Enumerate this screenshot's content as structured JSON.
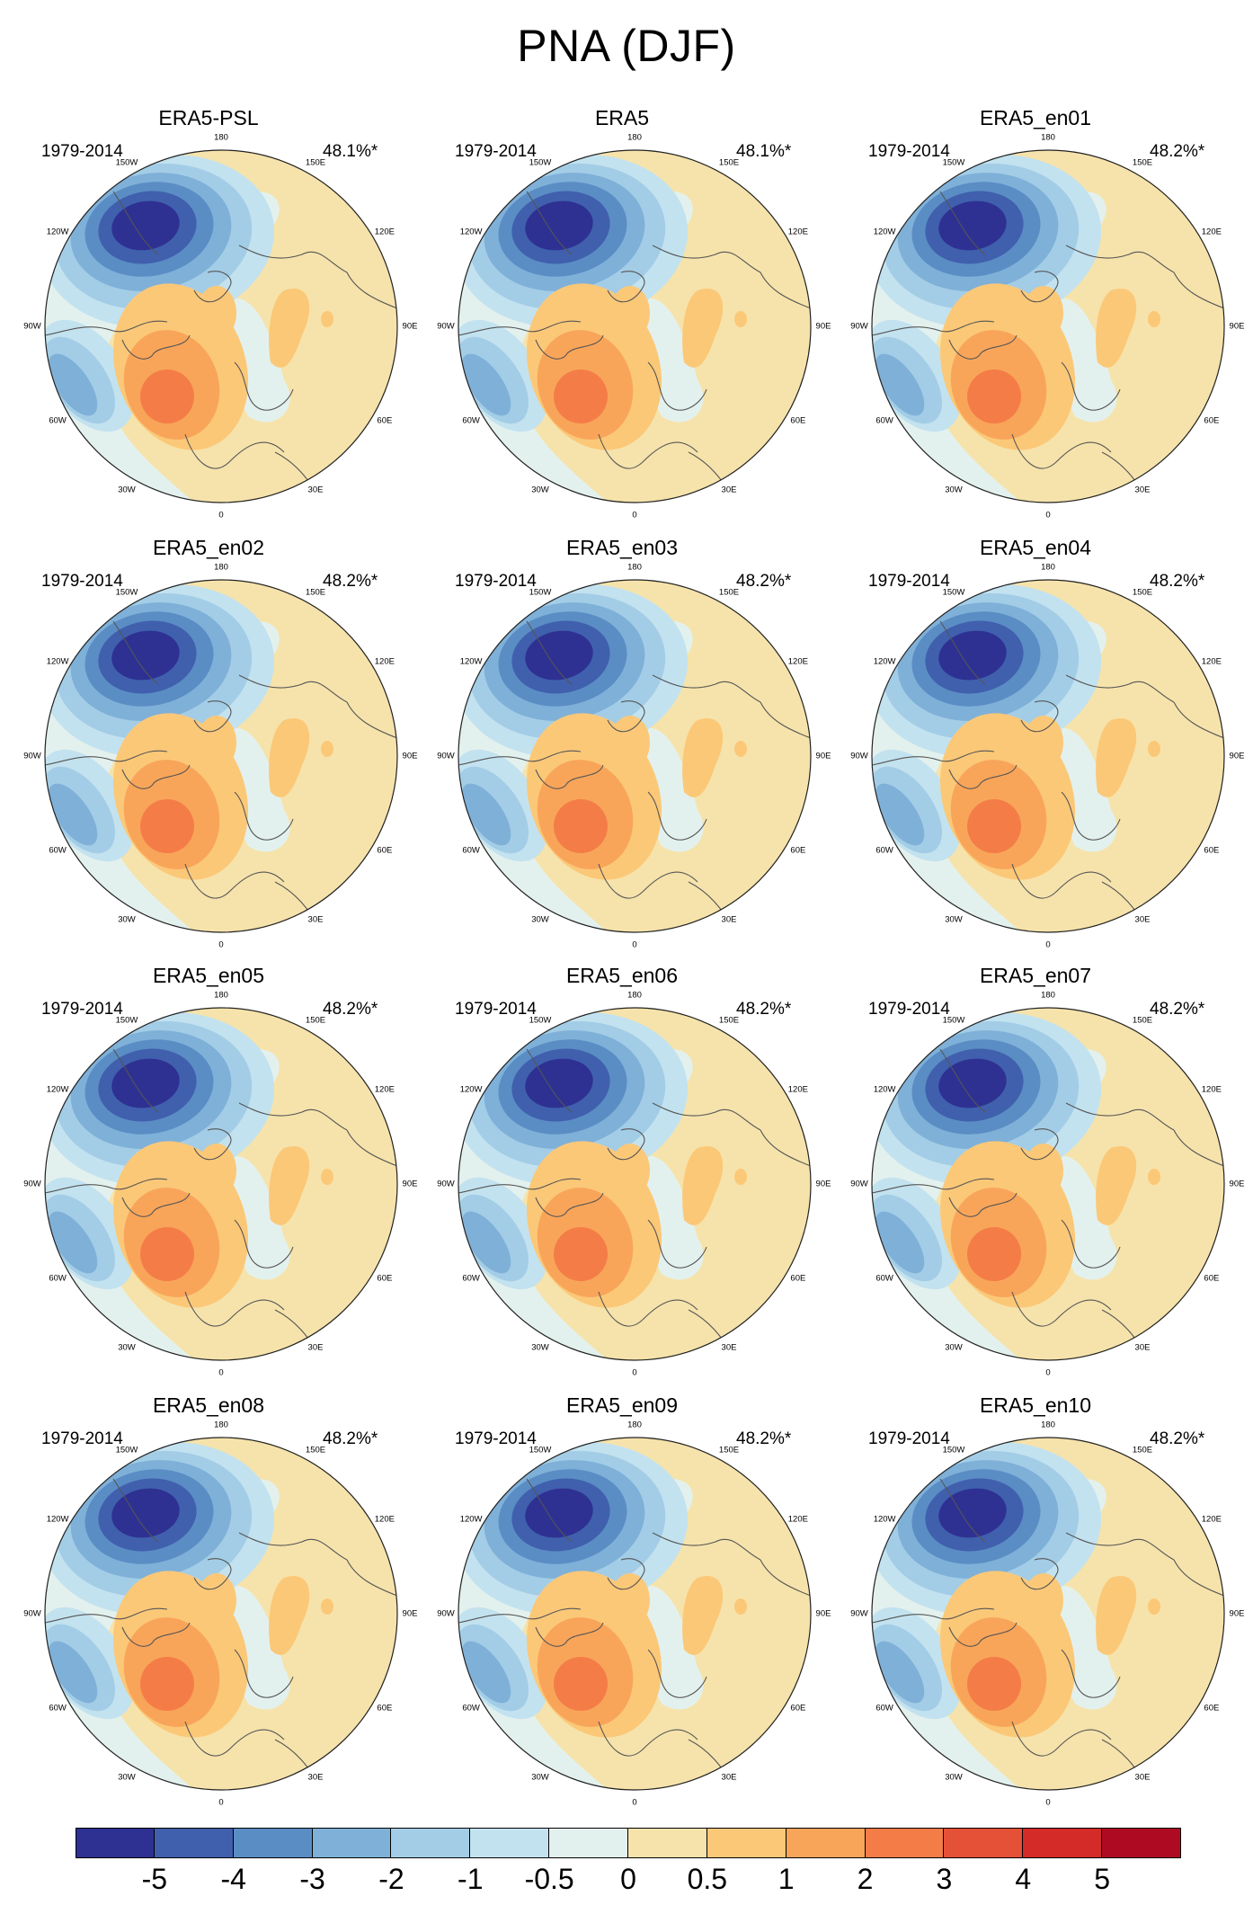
{
  "title": "PNA (DJF)",
  "period": "1979-2014",
  "lon_labels": [
    "180",
    "150E",
    "120E",
    "90E",
    "60E",
    "30E",
    "0",
    "30W",
    "60W",
    "90W",
    "120W",
    "150W"
  ],
  "panels": [
    {
      "title": "ERA5-PSL",
      "variance": "48.1%*"
    },
    {
      "title": "ERA5",
      "variance": "48.1%*"
    },
    {
      "title": "ERA5_en01",
      "variance": "48.2%*"
    },
    {
      "title": "ERA5_en02",
      "variance": "48.2%*"
    },
    {
      "title": "ERA5_en03",
      "variance": "48.2%*"
    },
    {
      "title": "ERA5_en04",
      "variance": "48.2%*"
    },
    {
      "title": "ERA5_en05",
      "variance": "48.2%*"
    },
    {
      "title": "ERA5_en06",
      "variance": "48.2%*"
    },
    {
      "title": "ERA5_en07",
      "variance": "48.2%*"
    },
    {
      "title": "ERA5_en08",
      "variance": "48.2%*"
    },
    {
      "title": "ERA5_en09",
      "variance": "48.2%*"
    },
    {
      "title": "ERA5_en10",
      "variance": "48.2%*"
    }
  ],
  "colorbar": {
    "labels": [
      "-5",
      "-4",
      "-3",
      "-2",
      "-1",
      "-0.5",
      "0",
      "0.5",
      "1",
      "2",
      "3",
      "4",
      "5"
    ],
    "colors": [
      "#2e3192",
      "#4060ad",
      "#5b8dc5",
      "#7fb0d8",
      "#a3cde6",
      "#c3e2ef",
      "#e3f1ee",
      "#f6e3ab",
      "#fbc878",
      "#f8a55a",
      "#f47d47",
      "#e55137",
      "#d42a28",
      "#ae0b22"
    ]
  }
}
